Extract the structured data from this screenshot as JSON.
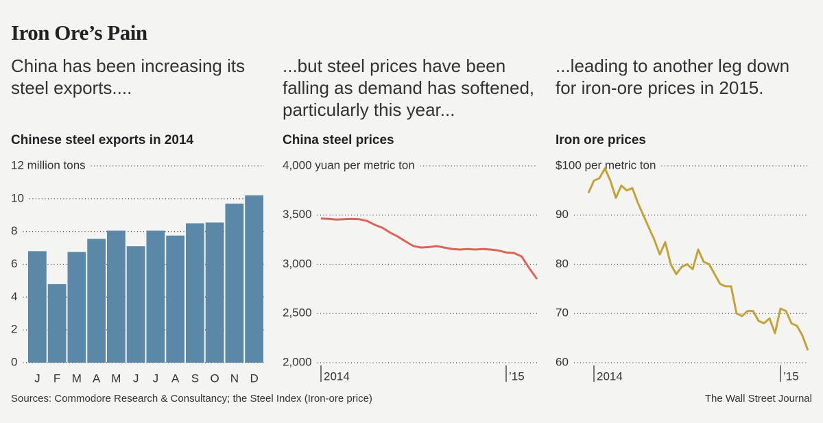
{
  "title": "Iron Ore’s Pain",
  "sources": "Sources: Commodore Research & Consultancy; the Steel Index (Iron-ore price)",
  "credit": "The Wall Street Journal",
  "chart_data": [
    {
      "type": "bar",
      "subtitle": "China has been increasing its steel exports....",
      "title": "Chinese steel exports in 2014",
      "categories": [
        "J",
        "F",
        "M",
        "A",
        "M",
        "J",
        "J",
        "A",
        "S",
        "O",
        "N",
        "D"
      ],
      "values": [
        6.8,
        4.8,
        6.75,
        7.55,
        8.05,
        7.1,
        8.05,
        7.75,
        8.5,
        8.55,
        9.7,
        10.2
      ],
      "color": "#5b87a8",
      "ylim": [
        0,
        12
      ],
      "yticks": [
        0,
        2,
        4,
        6,
        8,
        10,
        {
          "value": 12,
          "label": "12 million tons"
        }
      ],
      "grid": true
    },
    {
      "type": "line",
      "subtitle": "...but steel prices have been falling as demand has softened, particularly this year...",
      "title": "China steel prices",
      "categories": [
        "2014",
        null,
        null,
        null,
        null,
        null,
        null,
        null,
        null,
        null,
        null,
        null,
        null,
        null,
        null,
        null,
        null,
        null,
        null,
        null,
        null,
        null,
        null,
        null,
        "’15",
        null,
        null,
        null,
        null
      ],
      "values": [
        3465,
        3462,
        3455,
        3458,
        3462,
        3458,
        3440,
        3400,
        3370,
        3320,
        3280,
        3230,
        3185,
        3170,
        3175,
        3185,
        3170,
        3155,
        3150,
        3155,
        3150,
        3155,
        3150,
        3140,
        3120,
        3115,
        3080,
        2960,
        2850
      ],
      "color": "#dd6359",
      "ylim": [
        2000,
        4000
      ],
      "yticks": [
        {
          "value": 2000,
          "label": "2,000"
        },
        {
          "value": 2500,
          "label": "2,500"
        },
        {
          "value": 3000,
          "label": "3,000"
        },
        {
          "value": 3500,
          "label": "3,500"
        },
        {
          "value": 4000,
          "label": "4,000 yuan per metric ton"
        }
      ],
      "grid": true
    },
    {
      "type": "line",
      "subtitle": "...leading to another leg down for iron-ore prices in 2015.",
      "title": "Iron ore prices",
      "categories": [
        null,
        "2014",
        null,
        null,
        null,
        null,
        null,
        null,
        null,
        null,
        null,
        null,
        null,
        null,
        null,
        null,
        null,
        null,
        null,
        null,
        null,
        null,
        null,
        null,
        null,
        null,
        null,
        null,
        null,
        null,
        null,
        null,
        null,
        null,
        null,
        "’15",
        null,
        null,
        null,
        null,
        null
      ],
      "values": [
        94.5,
        97,
        97.5,
        99.5,
        97,
        93.5,
        96,
        95,
        95.5,
        92.5,
        90,
        87.5,
        85,
        82,
        84.5,
        80,
        78,
        79.5,
        80,
        79,
        83,
        80.5,
        80,
        78,
        76,
        75.5,
        75.5,
        70,
        69.5,
        70.5,
        70.5,
        68.5,
        68,
        69,
        66,
        71,
        70.5,
        68,
        67.5,
        65.5,
        62.5
      ],
      "color": "#c4a23a",
      "ylim": [
        60,
        100
      ],
      "yticks": [
        60,
        70,
        80,
        90,
        {
          "value": 100,
          "label": "$100 per metric ton"
        }
      ],
      "grid": true
    }
  ]
}
